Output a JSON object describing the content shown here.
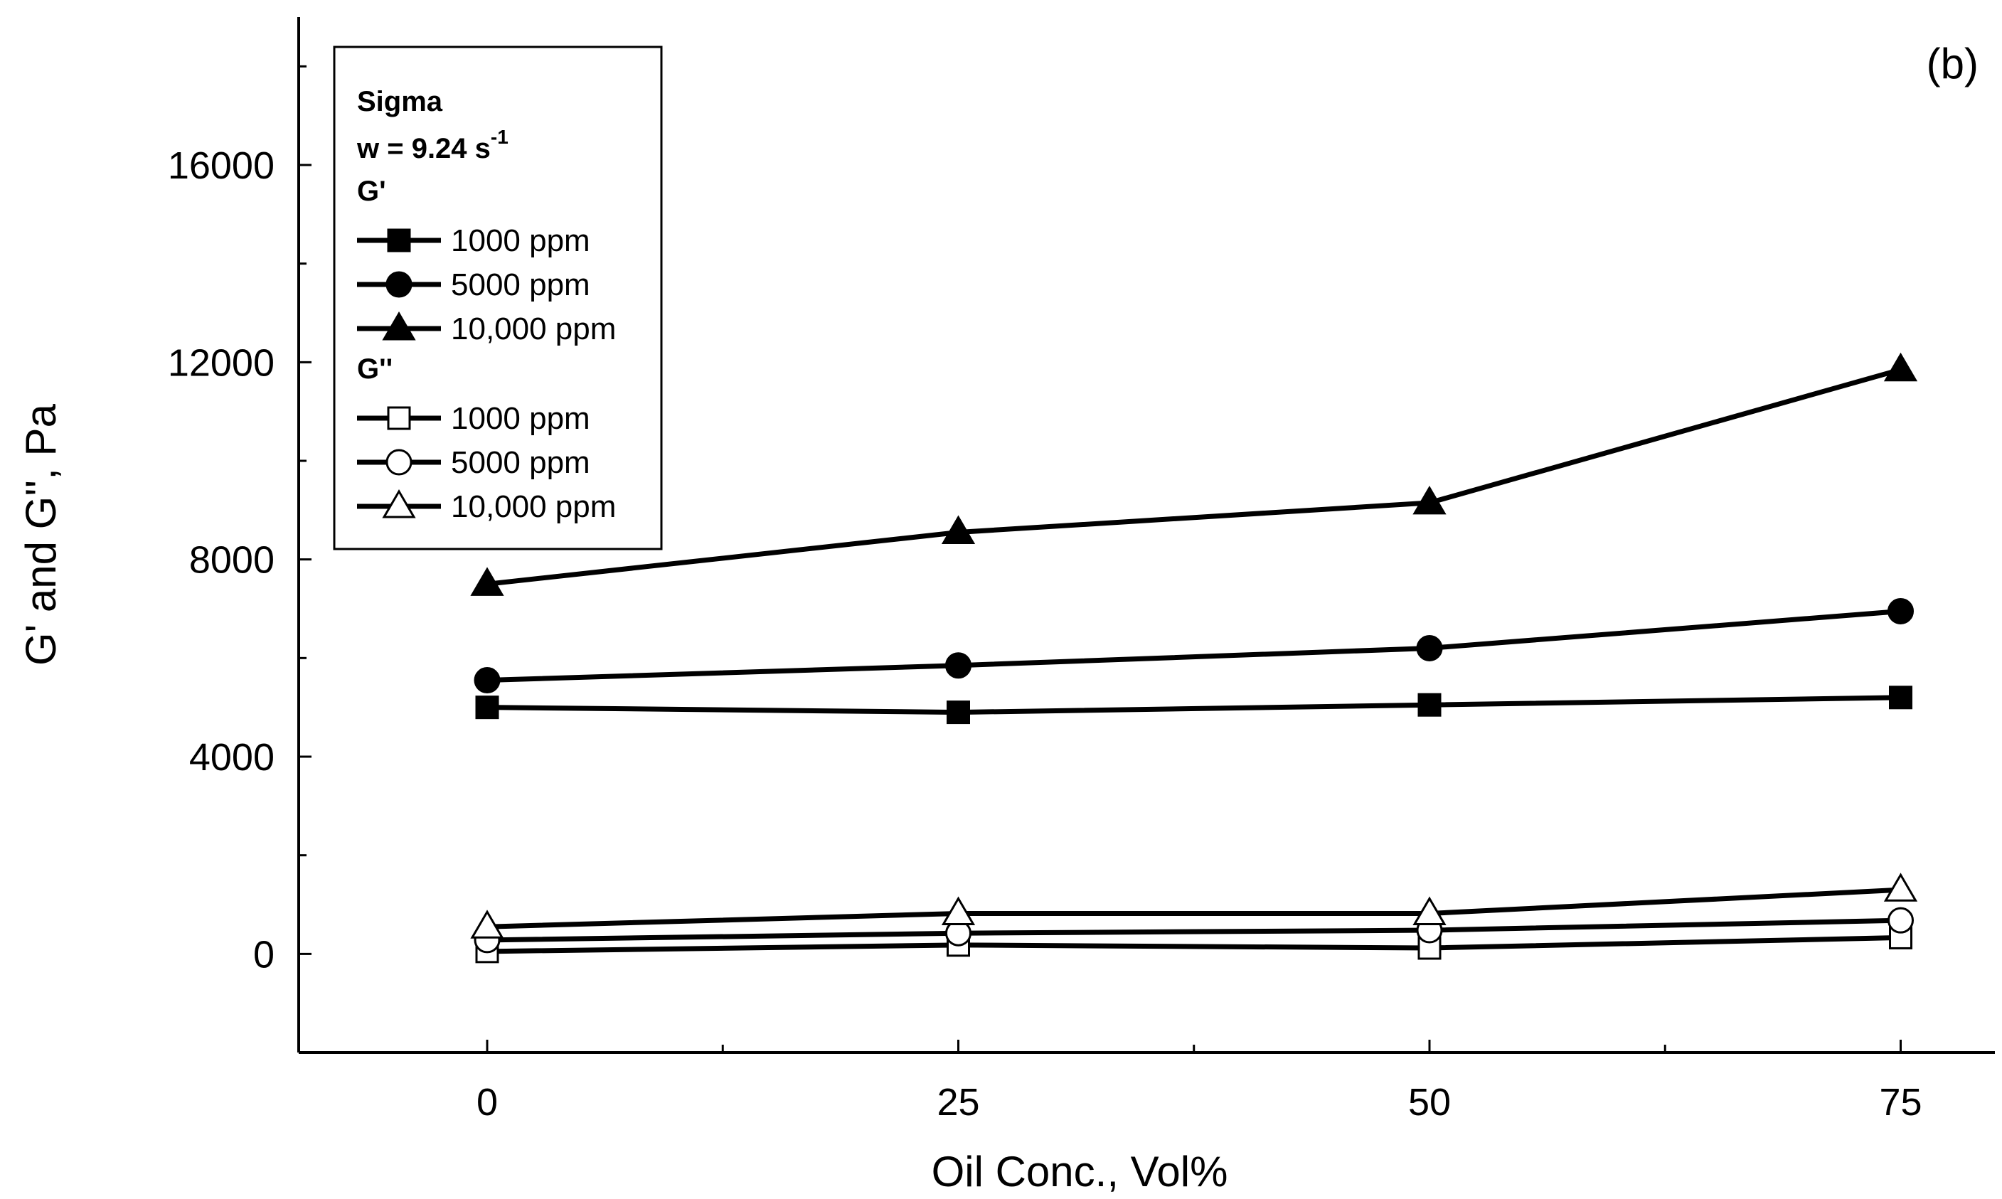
{
  "chart_data": {
    "type": "line",
    "panel_label": "(b)",
    "xlabel": "Oil Conc., Vol%",
    "ylabel": "G' and G'', Pa",
    "x": [
      0,
      25,
      50,
      75
    ],
    "xlim": [
      -10,
      80
    ],
    "ylim": [
      -2000,
      19000
    ],
    "xticks": [
      0,
      25,
      50,
      75
    ],
    "xtick_labels": [
      "0",
      "25",
      "50",
      "75"
    ],
    "yticks": [
      0,
      4000,
      8000,
      12000,
      16000
    ],
    "ytick_labels": [
      "0",
      "4000",
      "8000",
      "12000",
      "16000"
    ],
    "legend": {
      "title": "Sigma",
      "subtitle_main": "w = 9.24 s",
      "subtitle_sup": "-1",
      "groups": [
        "G'",
        "G''"
      ],
      "placement": "top-left"
    },
    "series": [
      {
        "name": "1000 ppm",
        "group": "G'",
        "marker": "square",
        "filled": true,
        "values": [
          5000,
          4900,
          5050,
          5200
        ]
      },
      {
        "name": "5000 ppm",
        "group": "G'",
        "marker": "circle",
        "filled": true,
        "values": [
          5550,
          5850,
          6200,
          6950
        ]
      },
      {
        "name": "10,000 ppm",
        "group": "G'",
        "marker": "triangle",
        "filled": true,
        "values": [
          7500,
          8550,
          9150,
          11850
        ]
      },
      {
        "name": "1000 ppm",
        "group": "G''",
        "marker": "square",
        "filled": false,
        "values": [
          50,
          180,
          120,
          330
        ]
      },
      {
        "name": "5000 ppm",
        "group": "G''",
        "marker": "circle",
        "filled": false,
        "values": [
          280,
          420,
          480,
          680
        ]
      },
      {
        "name": "10,000 ppm",
        "group": "G''",
        "marker": "triangle",
        "filled": false,
        "values": [
          550,
          820,
          820,
          1300
        ]
      }
    ]
  }
}
